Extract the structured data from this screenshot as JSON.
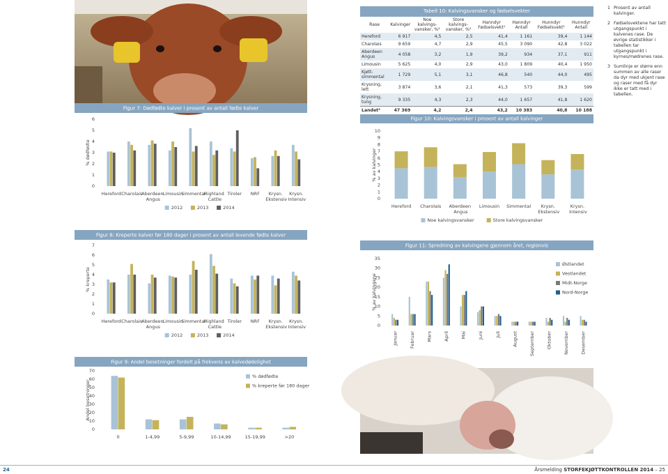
{
  "chart_data": [
    {
      "type": "bar",
      "title": "Figur 7: Dødfødte kalver i prosent av antall fødte kalver",
      "y_label": "% dødfødte",
      "categories": [
        "Hereford",
        "Charolais",
        "Aberdeen Angus",
        "Limousin",
        "Simmental",
        "Highland Cattle",
        "Tiroler",
        "NRF",
        "Krysn. Ekstensiv",
        "Krysn. Intensiv"
      ],
      "series": [
        {
          "name": "2012",
          "color": "#a9c3d6",
          "values": [
            3.1,
            4.0,
            3.7,
            3.2,
            5.2,
            4.0,
            3.4,
            2.5,
            2.7,
            3.7
          ]
        },
        {
          "name": "2013",
          "color": "#c4b35a",
          "values": [
            3.1,
            3.7,
            4.1,
            4.0,
            3.1,
            2.8,
            3.1,
            2.6,
            3.2,
            3.1
          ]
        },
        {
          "name": "2014",
          "color": "#5f5f5f",
          "values": [
            3.0,
            3.2,
            3.8,
            3.5,
            3.6,
            3.2,
            5.0,
            1.6,
            2.7,
            2.4
          ]
        }
      ],
      "ylim": [
        0,
        6
      ],
      "yticks": [
        0,
        1,
        2,
        3,
        4,
        5,
        6
      ],
      "grid": false,
      "legend": "bottom"
    },
    {
      "type": "bar",
      "title": "Figur 8: Kreperte kalver før 180 dager i prosent av antall levende fødte kalver",
      "y_label": "% kreperte",
      "categories": [
        "Hereford",
        "Charolais",
        "Aberdeen Angus",
        "Limousin",
        "Simmental",
        "Highland Cattle",
        "Tiroler",
        "NRF",
        "Krysn. Ekstensiv",
        "Krysn. Intensiv"
      ],
      "series": [
        {
          "name": "2012",
          "color": "#a9c3d6",
          "values": [
            3.5,
            4.0,
            3.1,
            3.9,
            4.0,
            6.1,
            3.6,
            3.9,
            3.9,
            4.3
          ]
        },
        {
          "name": "2013",
          "color": "#c4b35a",
          "values": [
            3.2,
            5.1,
            4.0,
            3.8,
            5.4,
            4.9,
            3.1,
            3.5,
            2.9,
            3.9
          ]
        },
        {
          "name": "2014",
          "color": "#5f5f5f",
          "values": [
            3.2,
            4.0,
            3.7,
            3.7,
            4.5,
            4.1,
            2.8,
            3.9,
            3.6,
            3.4
          ]
        }
      ],
      "ylim": [
        0,
        7
      ],
      "yticks": [
        0,
        1,
        2,
        3,
        4,
        5,
        6,
        7
      ],
      "grid": false,
      "legend": "bottom"
    },
    {
      "type": "bar",
      "title": "Figur 9: Andel besetninger fordelt på frekvens av kalvedødelighet",
      "y_label": "Andel besetninger",
      "categories": [
        "0",
        "1-4,99",
        "5-9,99",
        "10-14,99",
        "15-19,99",
        ">20"
      ],
      "series": [
        {
          "name": "% dødfødte",
          "color": "#a9c3d6",
          "values": [
            64,
            12,
            12,
            7,
            2,
            2
          ]
        },
        {
          "name": "% kreperte før 180 dager",
          "color": "#c4b35a",
          "values": [
            62,
            11,
            15,
            6,
            2,
            3
          ]
        }
      ],
      "ylim": [
        0,
        70
      ],
      "yticks": [
        0,
        10,
        20,
        30,
        40,
        50,
        60,
        70
      ],
      "grid": false,
      "legend": "upper right"
    },
    {
      "type": "stacked_bar",
      "title": "Figur 10: Kalvingsvansker i prosent av antall kalvinger",
      "y_label": "% av kalvinger",
      "categories": [
        "Hereford",
        "Charolais",
        "Aberdeen Angus",
        "Limousin",
        "Simmental",
        "Krysn. Ekstensiv",
        "Krysn. Intensiv"
      ],
      "series": [
        {
          "name": "Noe kalvingsvansker",
          "color": "#a9c3d6",
          "values": [
            4.5,
            4.7,
            3.2,
            4.0,
            5.1,
            3.6,
            4.3
          ]
        },
        {
          "name": "Store kalvingsvansker",
          "color": "#c4b35a",
          "values": [
            2.5,
            2.9,
            1.9,
            2.9,
            3.1,
            2.1,
            2.3
          ]
        }
      ],
      "ylim": [
        0,
        10
      ],
      "yticks": [
        0,
        1,
        2,
        3,
        4,
        5,
        6,
        7,
        8,
        9,
        10
      ],
      "grid": false,
      "legend": "bottom"
    },
    {
      "type": "bar",
      "title": "Figur 11: Spredning av kalvingene gjennom året, regionvis",
      "y_label": "% av kalvingene",
      "categories": [
        "Januar",
        "Februar",
        "Mars",
        "April",
        "Mai",
        "Juni",
        "Juli",
        "August",
        "September",
        "Oktober",
        "November",
        "Desember"
      ],
      "series": [
        {
          "name": "Østlandet",
          "color": "#a9c3d6",
          "values": [
            6,
            15,
            23,
            25,
            10,
            7,
            5,
            2,
            2,
            4,
            5,
            5
          ]
        },
        {
          "name": "Vestlandet",
          "color": "#c4b35a",
          "values": [
            4,
            6,
            23,
            29,
            16,
            8,
            5,
            2,
            2,
            2,
            2,
            3
          ]
        },
        {
          "name": "Midt-Norge",
          "color": "#7a7a7a",
          "values": [
            3,
            6,
            18,
            27,
            16,
            10,
            6,
            2,
            2,
            4,
            4,
            3
          ]
        },
        {
          "name": "Nord-Norge",
          "color": "#1f5f8f",
          "values": [
            3,
            6,
            16,
            32,
            18,
            10,
            5,
            2,
            2,
            3,
            3,
            2
          ]
        }
      ],
      "ylim": [
        0,
        35
      ],
      "yticks": [
        0,
        5,
        10,
        15,
        20,
        25,
        30,
        35
      ],
      "grid": false,
      "legend": "upper right",
      "rotate_labels": true
    }
  ],
  "table": {
    "title": "Tabell 10: Kalvingsvansker og fødselsvekter",
    "header": [
      "Rase",
      "Kalvinger",
      "Noe kalvings-vansker, %²",
      "Store kalvings-vansker, %²",
      "Hanndyr Fødselsvekt¹",
      "Hanndyr Antall",
      "Hunndyr Fødselsvekt¹",
      "Hunndyr Antall"
    ],
    "rows": [
      [
        "Hereford",
        "6 917",
        "4,5",
        "2,5",
        "41,4",
        "1 161",
        "39,4",
        "1 144"
      ],
      [
        "Charolais",
        "9 659",
        "4,7",
        "2,9",
        "45,5",
        "3 090",
        "42,8",
        "3 022"
      ],
      [
        "Aberdeen Angus",
        "4 058",
        "3,2",
        "1,9",
        "39,2",
        "934",
        "37,1",
        "911"
      ],
      [
        "Limousin",
        "5 625",
        "4,0",
        "2,9",
        "43,0",
        "1 809",
        "40,4",
        "1 950"
      ],
      [
        "Kjøtt-simmental",
        "1 729",
        "5,1",
        "3,1",
        "46,8",
        "540",
        "44,0",
        "495"
      ],
      [
        "Krysning, lett",
        "3 874",
        "3,6",
        "2,1",
        "41,3",
        "573",
        "39,3",
        "599"
      ],
      [
        "Krysning, tung",
        "9 335",
        "4,3",
        "2,3",
        "44,0",
        "1 657",
        "41,8",
        "1 620"
      ],
      [
        "Landet³",
        "47 369",
        "4,2",
        "2,4",
        "43,2",
        "10 383",
        "40,8",
        "10 188"
      ]
    ]
  },
  "notes": [
    {
      "n": "1",
      "text": "Prosent av antall kalvinger."
    },
    {
      "n": "2",
      "text": "Fødselsvektene har tatt utgangspunkt i kalvenes rase. De øvrige statistikker i tabellen tar utgangspunkt i kyrnes/mødrenes rase."
    },
    {
      "n": "3",
      "text": "Sumlinje er større enn summen av alle raser da dyr med ukjent rase og raser med få dyr ikke er tatt med i tabellen."
    }
  ],
  "footer": {
    "left_page": "24",
    "publication": "Årsmelding",
    "series_title": "STORFEKJØTTKONTROLLEN 2014",
    "right_page": "– 25"
  }
}
